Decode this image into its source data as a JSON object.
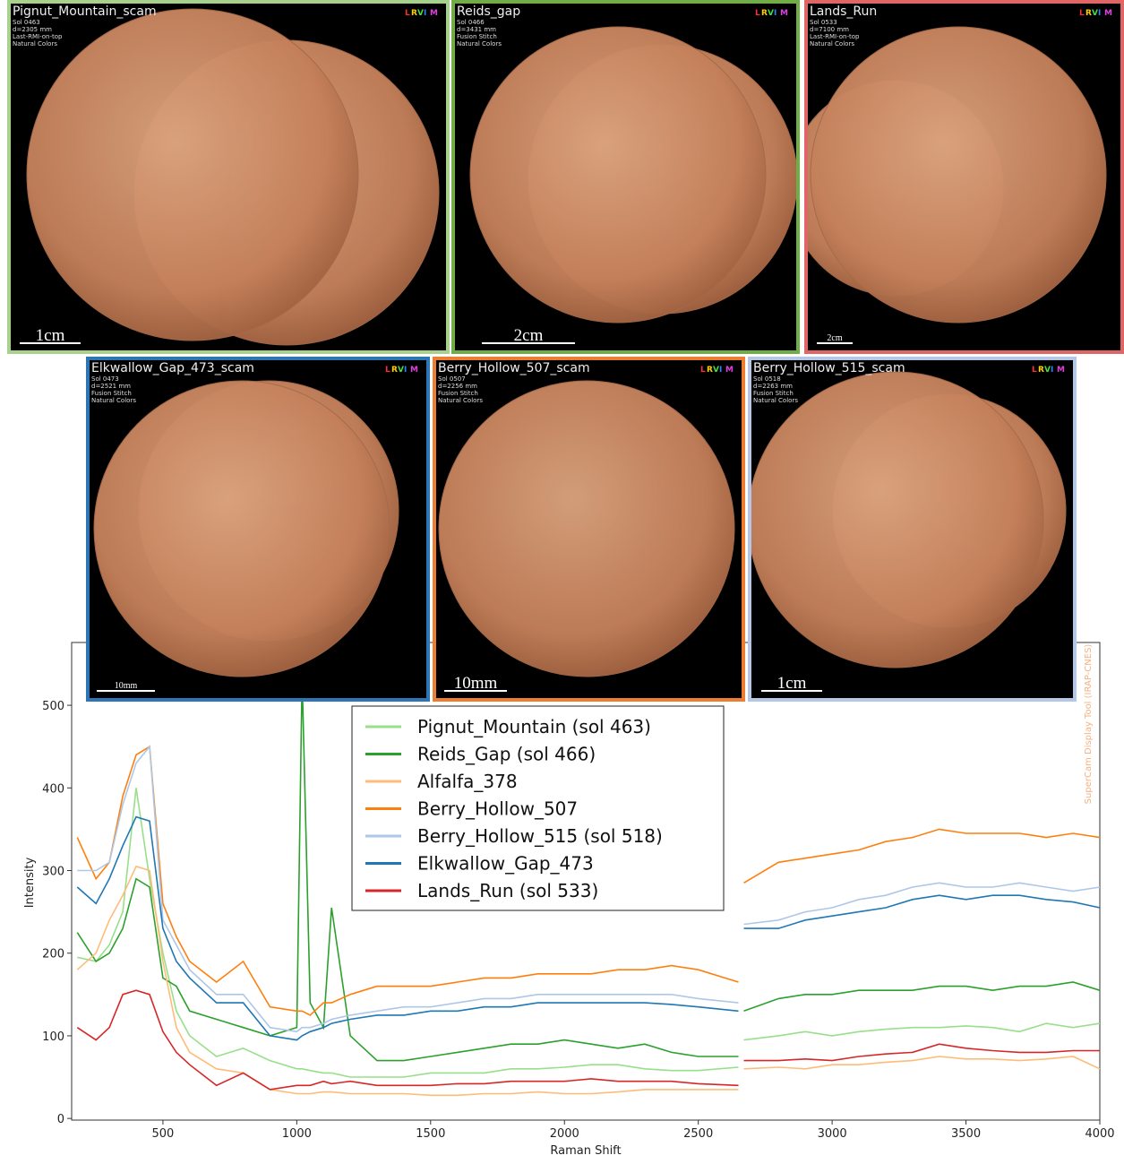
{
  "panels": [
    {
      "title": "Pignut_Mountain_scam",
      "info": [
        "Sol 0463",
        "d=2305 mm",
        "Last-RMI-on-top",
        "Natural Colors"
      ],
      "scale": "1cm"
    },
    {
      "title": "Reids_gap",
      "info": [
        "Sol 0466",
        "d=3431 mm",
        "Fusion Stitch",
        "Natural Colors"
      ],
      "scale": "2cm"
    },
    {
      "title": "Lands_Run",
      "info": [
        "Sol 0533",
        "d=7100 mm",
        "Last-RMI-on-top",
        "Natural Colors"
      ],
      "scale": "2cm"
    },
    {
      "title": "Elkwallow_Gap_473_scam",
      "info": [
        "Sol 0473",
        "d=2521 mm",
        "Fusion Stitch",
        "Natural Colors"
      ],
      "scale": "10mm"
    },
    {
      "title": "Berry_Hollow_507_scam",
      "info": [
        "Sol 0507",
        "d=2256 mm",
        "Fusion Stitch",
        "Natural Colors"
      ],
      "scale": "10mm"
    },
    {
      "title": "Berry_Hollow_515_scam",
      "info": [
        "Sol 0518",
        "d=2263 mm",
        "Fusion Stitch",
        "Natural Colors"
      ],
      "scale": "1cm"
    }
  ],
  "logo": [
    "L",
    "R",
    "V",
    "I",
    "M"
  ],
  "chart_data": {
    "type": "line",
    "x_label": "Raman Shift",
    "y_label": "Intensity",
    "watermark": "SuperCam Display Tool (IRAP-CNES)",
    "xlim": [
      159,
      4000
    ],
    "ylim": [
      -2,
      576
    ],
    "xticks": [
      500,
      1000,
      1500,
      2000,
      2500,
      3000,
      3500,
      4000
    ],
    "yticks": [
      0,
      100,
      200,
      300,
      400,
      500
    ],
    "x": [
      180,
      250,
      300,
      350,
      400,
      450,
      500,
      550,
      600,
      700,
      800,
      900,
      1000,
      1020,
      1050,
      1100,
      1130,
      1200,
      1300,
      1400,
      1500,
      1600,
      1700,
      1800,
      1900,
      2000,
      2100,
      2200,
      2300,
      2400,
      2500,
      2650,
      2660,
      2670,
      2800,
      2900,
      3000,
      3100,
      3200,
      3300,
      3400,
      3500,
      3600,
      3700,
      3800,
      3900,
      4000
    ],
    "series": [
      {
        "name": "Pignut_Mountain (sol 463)",
        "color": "#98df8a",
        "values": [
          195,
          190,
          210,
          250,
          400,
          290,
          200,
          130,
          100,
          75,
          85,
          70,
          60,
          60,
          58,
          55,
          55,
          50,
          50,
          50,
          55,
          55,
          55,
          60,
          60,
          62,
          65,
          65,
          60,
          58,
          58,
          62,
          null,
          95,
          100,
          105,
          100,
          105,
          108,
          110,
          110,
          112,
          110,
          105,
          115,
          110,
          115
        ]
      },
      {
        "name": "Reids_Gap (sol 466)",
        "color": "#2ca02c",
        "values": [
          225,
          190,
          200,
          230,
          290,
          280,
          170,
          160,
          130,
          120,
          110,
          100,
          110,
          535,
          140,
          110,
          255,
          100,
          70,
          70,
          75,
          80,
          85,
          90,
          90,
          95,
          90,
          85,
          90,
          80,
          75,
          75,
          null,
          130,
          145,
          150,
          150,
          155,
          155,
          155,
          160,
          160,
          155,
          160,
          160,
          165,
          155
        ]
      },
      {
        "name": "Alfalfa_378",
        "color": "#ffbb78",
        "values": [
          180,
          200,
          240,
          270,
          305,
          300,
          190,
          110,
          80,
          60,
          55,
          35,
          30,
          30,
          30,
          32,
          32,
          30,
          30,
          30,
          28,
          28,
          30,
          30,
          32,
          30,
          30,
          32,
          35,
          35,
          35,
          35,
          null,
          60,
          62,
          60,
          65,
          65,
          68,
          70,
          75,
          72,
          72,
          70,
          72,
          75,
          60
        ]
      },
      {
        "name": "Berry_Hollow_507",
        "color": "#ff7f0e",
        "values": [
          340,
          290,
          310,
          390,
          440,
          450,
          260,
          220,
          190,
          165,
          190,
          135,
          130,
          130,
          125,
          140,
          140,
          150,
          160,
          160,
          160,
          165,
          170,
          170,
          175,
          175,
          175,
          180,
          180,
          185,
          180,
          165,
          null,
          285,
          310,
          315,
          320,
          325,
          335,
          340,
          350,
          345,
          345,
          345,
          340,
          345,
          340
        ]
      },
      {
        "name": "Berry_Hollow_515 (sol 518)",
        "color": "#aec7e8",
        "values": [
          300,
          300,
          310,
          380,
          430,
          450,
          240,
          210,
          180,
          150,
          150,
          110,
          105,
          110,
          110,
          115,
          120,
          125,
          130,
          135,
          135,
          140,
          145,
          145,
          150,
          150,
          150,
          150,
          150,
          150,
          145,
          140,
          null,
          235,
          240,
          250,
          255,
          265,
          270,
          280,
          285,
          280,
          280,
          285,
          280,
          275,
          280
        ]
      },
      {
        "name": "Elkwallow_Gap_473",
        "color": "#1f77b4",
        "values": [
          280,
          260,
          290,
          330,
          365,
          360,
          230,
          190,
          170,
          140,
          140,
          100,
          95,
          100,
          105,
          110,
          115,
          120,
          125,
          125,
          130,
          130,
          135,
          135,
          140,
          140,
          140,
          140,
          140,
          138,
          135,
          130,
          null,
          230,
          230,
          240,
          245,
          250,
          255,
          265,
          270,
          265,
          270,
          270,
          265,
          262,
          255
        ]
      },
      {
        "name": "Lands_Run (sol 533)",
        "color": "#d62728",
        "values": [
          110,
          95,
          110,
          150,
          155,
          150,
          105,
          80,
          65,
          40,
          55,
          35,
          40,
          40,
          40,
          45,
          42,
          45,
          40,
          40,
          40,
          42,
          42,
          45,
          45,
          45,
          48,
          45,
          45,
          45,
          42,
          40,
          null,
          70,
          70,
          72,
          70,
          75,
          78,
          80,
          90,
          85,
          82,
          80,
          80,
          82,
          82
        ]
      }
    ]
  }
}
